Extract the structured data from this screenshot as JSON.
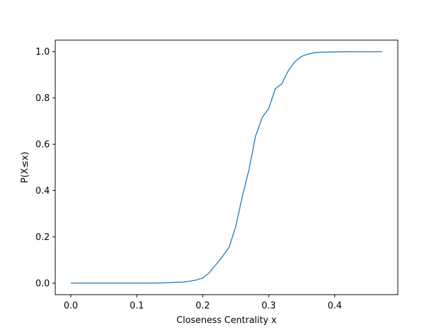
{
  "chart_data": {
    "type": "line",
    "title": "",
    "xlabel": "Closeness Centrality x",
    "ylabel": "P(X≤x)",
    "xlim": [
      -0.0236,
      0.4956
    ],
    "ylim": [
      -0.05,
      1.05
    ],
    "xticks": [
      0.0,
      0.1,
      0.2,
      0.3,
      0.4
    ],
    "xtick_labels": [
      "0.0",
      "0.1",
      "0.2",
      "0.3",
      "0.4"
    ],
    "yticks": [
      0.0,
      0.2,
      0.4,
      0.6,
      0.8,
      1.0
    ],
    "ytick_labels": [
      "0.0",
      "0.2",
      "0.4",
      "0.6",
      "0.8",
      "1.0"
    ],
    "grid": false,
    "line_color": "#1f77b4",
    "series": [
      {
        "x": [
          0.0,
          0.05,
          0.1,
          0.13,
          0.15,
          0.17,
          0.18,
          0.19,
          0.2,
          0.21,
          0.22,
          0.23,
          0.24,
          0.25,
          0.26,
          0.27,
          0.28,
          0.29,
          0.3,
          0.31,
          0.32,
          0.33,
          0.34,
          0.35,
          0.36,
          0.37,
          0.38,
          0.4,
          0.43,
          0.472
        ],
        "y": [
          0.0,
          0.0,
          0.0,
          0.0,
          0.002,
          0.004,
          0.008,
          0.013,
          0.022,
          0.045,
          0.08,
          0.115,
          0.155,
          0.245,
          0.375,
          0.49,
          0.635,
          0.715,
          0.755,
          0.84,
          0.862,
          0.92,
          0.958,
          0.98,
          0.99,
          0.996,
          0.998,
          0.999,
          1.0,
          1.0
        ]
      }
    ]
  }
}
